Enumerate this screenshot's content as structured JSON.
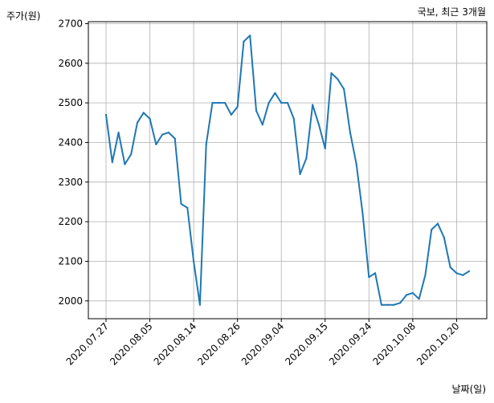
{
  "chart_data": {
    "type": "line",
    "title": "국보, 최근 3개월",
    "xlabel": "날짜(일)",
    "ylabel": "주가(원)",
    "ylim": [
      1955,
      2705
    ],
    "yticks": [
      2000,
      2100,
      2200,
      2300,
      2400,
      2500,
      2600,
      2700
    ],
    "xtick_labels": [
      "2020.07.27",
      "2020.08.05",
      "2020.08.14",
      "2020.08.26",
      "2020.09.04",
      "2020.09.15",
      "2020.09.24",
      "2020.10.08",
      "2020.10.20"
    ],
    "xtick_index": [
      0,
      7,
      14,
      21,
      28,
      35,
      42,
      49,
      56
    ],
    "grid": true,
    "line_color": "#1f77b4",
    "series": [
      {
        "values": [
          2470,
          2350,
          2425,
          2345,
          2370,
          2450,
          2475,
          2460,
          2395,
          2420,
          2425,
          2410,
          2245,
          2235,
          2100,
          1990,
          2395,
          2500,
          2500,
          2500,
          2470,
          2490,
          2655,
          2670,
          2480,
          2445,
          2500,
          2525,
          2500,
          2500,
          2460,
          2320,
          2360,
          2495,
          2445,
          2385,
          2575,
          2560,
          2535,
          2425,
          2345,
          2220,
          2060,
          2070,
          1990,
          1990,
          1990,
          1995,
          2015,
          2020,
          2005,
          2065,
          2180,
          2195,
          2160,
          2085,
          2070,
          2065,
          2075
        ]
      }
    ]
  }
}
